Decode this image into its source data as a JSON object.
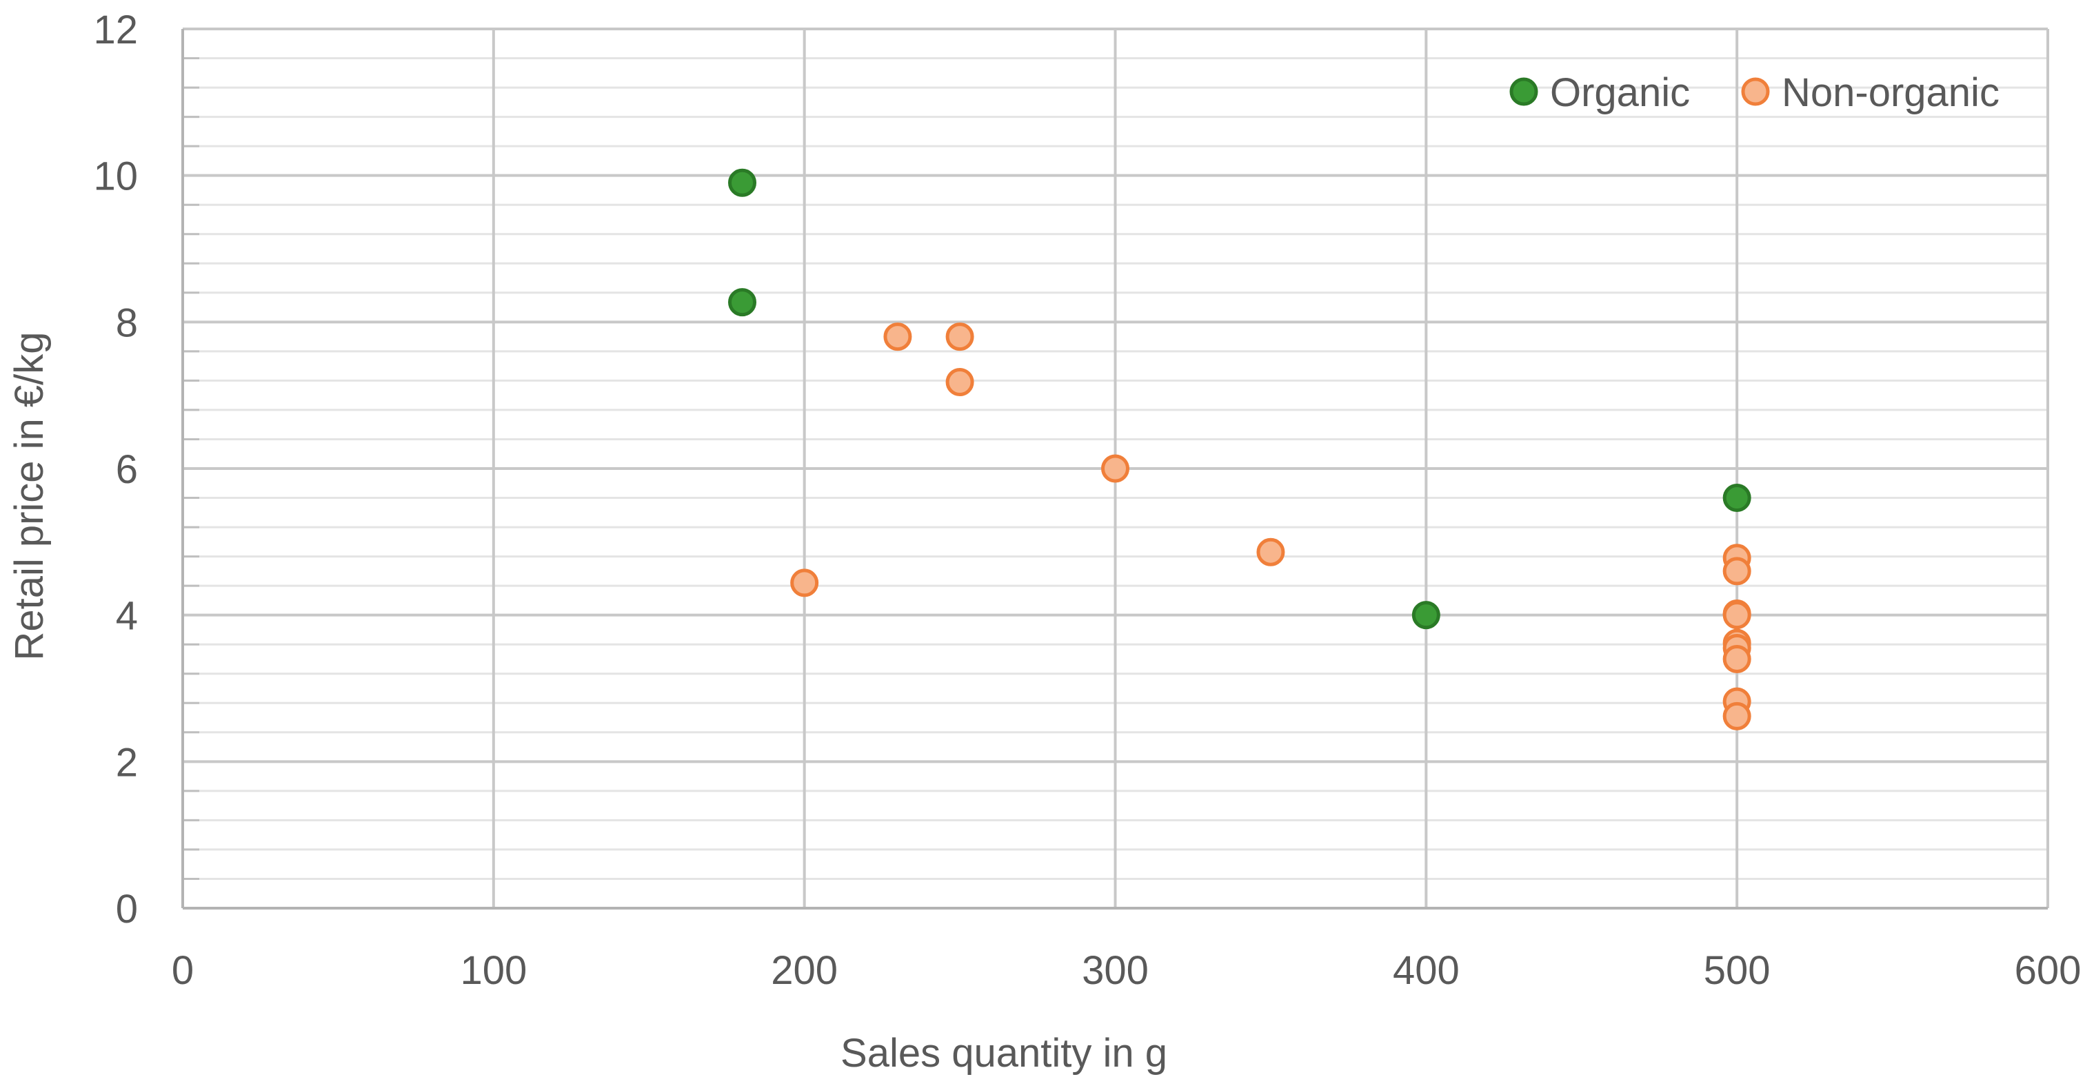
{
  "chart_data": {
    "type": "scatter",
    "xlabel": "Sales quantity in g",
    "ylabel": "Retail price in €/kg",
    "xlim": [
      0,
      600
    ],
    "ylim": [
      0,
      12
    ],
    "x_ticks": [
      0,
      100,
      200,
      300,
      400,
      500,
      600
    ],
    "y_ticks": [
      0,
      2,
      4,
      6,
      8,
      10,
      12
    ],
    "y_minor_step": 0.4,
    "grid": true,
    "legend_position": "top-right",
    "series": [
      {
        "name": "Organic",
        "color": "#3a9b35",
        "edge": "#2a7a26",
        "points": [
          [
            180,
            9.9
          ],
          [
            180,
            8.27
          ],
          [
            500,
            5.6
          ],
          [
            400,
            4.0
          ]
        ]
      },
      {
        "name": "Non-organic",
        "color": "#f8b58c",
        "edge": "#f07f3a",
        "points": [
          [
            230,
            7.8
          ],
          [
            250,
            7.8
          ],
          [
            250,
            7.18
          ],
          [
            300,
            6.0
          ],
          [
            350,
            4.86
          ],
          [
            200,
            4.44
          ],
          [
            500,
            4.78
          ],
          [
            500,
            4.6
          ],
          [
            500,
            4.02
          ],
          [
            500,
            4.0
          ],
          [
            500,
            3.62
          ],
          [
            500,
            3.55
          ],
          [
            500,
            3.4
          ],
          [
            500,
            2.82
          ],
          [
            500,
            2.62
          ]
        ]
      }
    ]
  }
}
